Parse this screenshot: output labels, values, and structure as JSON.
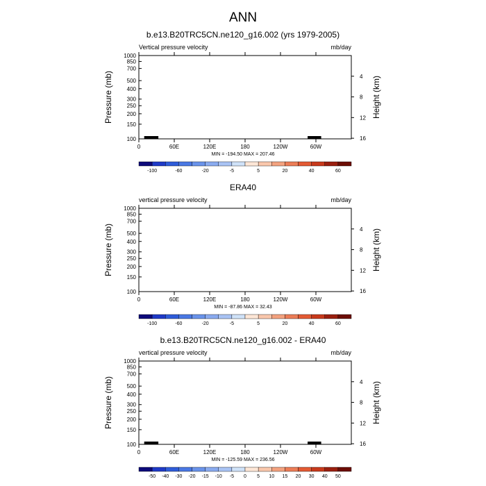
{
  "page_title": "ANN",
  "shared": {
    "pressure_levels": [
      100,
      150,
      200,
      250,
      300,
      400,
      500,
      700,
      850,
      1000
    ],
    "pressure_tick_labels": [
      "100",
      "150",
      "200",
      "250",
      "300",
      "400",
      "500",
      "700",
      "850",
      "1000"
    ],
    "height_km_ticks": [
      4,
      8,
      12,
      16
    ],
    "height_tick_labels": [
      "4",
      "8",
      "12",
      "16"
    ],
    "lon_ticks": [
      0,
      60,
      120,
      180,
      240,
      300
    ],
    "lon_tick_labels": [
      "0",
      "60E",
      "120E",
      "180",
      "120W",
      "60W"
    ],
    "xlim": [
      0,
      360
    ],
    "ylim": [
      1000,
      100
    ],
    "ylabel_left": "Pressure (mb)",
    "ylabel_right": "Height (km)"
  },
  "chart_data": [
    {
      "type": "heatmap",
      "title": "b.e13.B20TRC5CN.ne120_g16.002 (yrs 1979-2005)",
      "left_label": "Vertical pressure velocity",
      "units": "mb/day",
      "stats": "MIN = -194.50  MAX = 207.46",
      "min": -194.5,
      "max": 207.46,
      "colorbar": {
        "levels": [
          -100,
          -80,
          -60,
          -40,
          -20,
          -10,
          -5,
          0,
          5,
          10,
          20,
          30,
          40,
          50,
          60
        ],
        "tick_labels": [
          "-100",
          "-60",
          "-20",
          "-5",
          "5",
          "20",
          "40",
          "60"
        ],
        "colors": [
          "#0d0a7a",
          "#1f3ac7",
          "#2f5cd9",
          "#4a78e3",
          "#6a93ea",
          "#8aabef",
          "#a9c3f4",
          "#cfe2f8",
          "#fde6d6",
          "#f9c7ac",
          "#f3a27f",
          "#ec7d57",
          "#e35a34",
          "#c83a1c",
          "#9a1f0f",
          "#6c0d05"
        ]
      }
    },
    {
      "type": "heatmap",
      "title": "ERA40",
      "left_label": "vertical pressure velocity",
      "units": "mb/day",
      "stats": "MIN = -87.86  MAX = 32.43",
      "min": -87.86,
      "max": 32.43,
      "colorbar": {
        "levels": [
          -100,
          -80,
          -60,
          -40,
          -20,
          -10,
          -5,
          0,
          5,
          10,
          20,
          30,
          40,
          50,
          60
        ],
        "tick_labels": [
          "-100",
          "-60",
          "-20",
          "-5",
          "5",
          "20",
          "40",
          "60"
        ],
        "colors": [
          "#0d0a7a",
          "#1f3ac7",
          "#2f5cd9",
          "#4a78e3",
          "#6a93ea",
          "#8aabef",
          "#a9c3f4",
          "#cfe2f8",
          "#fde6d6",
          "#f9c7ac",
          "#f3a27f",
          "#ec7d57",
          "#e35a34",
          "#c83a1c",
          "#9a1f0f",
          "#6c0d05"
        ]
      }
    },
    {
      "type": "heatmap",
      "title": "b.e13.B20TRC5CN.ne120_g16.002 - ERA40",
      "left_label": "vertical pressure velocity",
      "units": "mb/day",
      "stats": "MIN = -125.59  MAX = 236.56",
      "min": -125.59,
      "max": 236.56,
      "colorbar": {
        "levels": [
          -50,
          -40,
          -30,
          -20,
          -15,
          -10,
          -5,
          0,
          5,
          10,
          15,
          20,
          30,
          40,
          50
        ],
        "tick_labels": [
          "-50",
          "-40",
          "-30",
          "-20",
          "-15",
          "-10",
          "-5",
          "0",
          "5",
          "10",
          "15",
          "20",
          "30",
          "40",
          "50"
        ],
        "colors": [
          "#0d0a7a",
          "#1f3ac7",
          "#2f5cd9",
          "#4a78e3",
          "#6a93ea",
          "#8aabef",
          "#a9c3f4",
          "#cfe2f8",
          "#fde6d6",
          "#f9c7ac",
          "#f3a27f",
          "#ec7d57",
          "#e35a34",
          "#c83a1c",
          "#9a1f0f",
          "#6c0d05"
        ]
      }
    }
  ]
}
